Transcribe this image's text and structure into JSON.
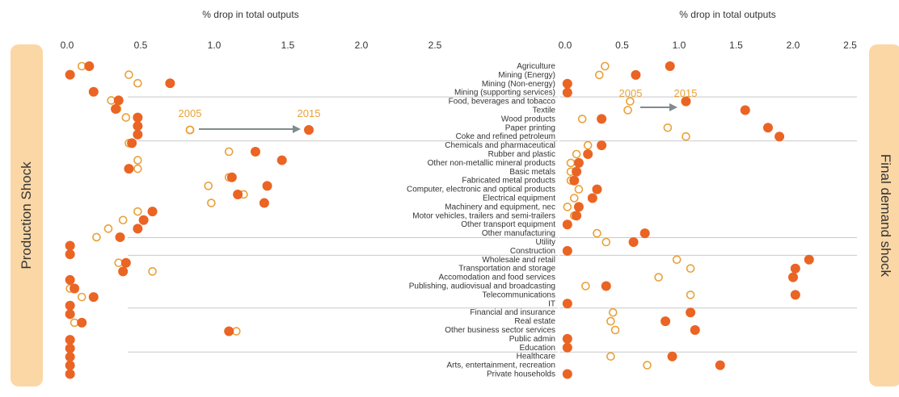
{
  "colors": {
    "dot_2015": "#ea6424",
    "dot_2005": "#e9a13a",
    "arrow": "#7f8c8d",
    "axis_text": "#333333",
    "grid": "#c9c9c9",
    "side_box": "#fbd7a6"
  },
  "side_labels": {
    "left": "Production Shock",
    "right": "Final demand shock"
  },
  "legend": {
    "year_2005": "2005",
    "year_2015": "2015"
  },
  "chart_data": [
    {
      "type": "scatter",
      "title": "% drop in  total outputs",
      "xlim": [
        0,
        2.5
      ],
      "xticks": [
        "0.0",
        "0.5",
        "1.0",
        "1.5",
        "2.0",
        "2.5"
      ],
      "grid": false,
      "series": [
        {
          "name": "2005",
          "values": [
            0.1,
            0.42,
            0.48,
            0.18,
            0.3,
            0.34,
            0.4,
            0.48,
            0.48,
            0.42,
            1.1,
            0.48,
            0.48,
            1.1,
            0.96,
            1.2,
            0.98,
            0.48,
            0.38,
            0.28,
            0.2,
            0.02,
            0.02,
            0.35,
            0.58,
            0.02,
            0.02,
            0.1,
            0.02,
            0.02,
            0.05,
            1.15,
            0.02,
            0.02,
            0.02,
            0.02,
            0.02
          ]
        },
        {
          "name": "2015",
          "values": [
            0.15,
            0.02,
            0.7,
            0.18,
            0.35,
            0.33,
            0.48,
            0.48,
            0.48,
            0.44,
            1.28,
            1.46,
            0.42,
            1.12,
            1.36,
            1.16,
            1.34,
            0.58,
            0.52,
            0.48,
            0.36,
            0.02,
            0.02,
            0.4,
            0.38,
            0.02,
            0.05,
            0.18,
            0.02,
            0.02,
            0.1,
            1.1,
            0.02,
            0.02,
            0.02,
            0.02,
            0.02
          ]
        }
      ]
    },
    {
      "type": "scatter",
      "title": "% drop in  total outputs",
      "xlim": [
        0,
        2.5
      ],
      "xticks": [
        "0.0",
        "0.5",
        "1.0",
        "1.5",
        "2.0",
        "2.5"
      ],
      "grid": false,
      "categories": [
        "Agriculture",
        "Mining (Energy)",
        "Mining (Non-energy)",
        "Mining (supporting services)",
        "Food, beverages and tobacco",
        "Textile",
        "Wood products",
        "Paper printing",
        "Coke and refined petroleum",
        "Chemicals and pharmaceutical",
        "Rubber and plastic",
        "Other non-metallic mineral products",
        "Basic metals",
        "Fabricated metal products",
        "Computer, electronic and optical products",
        "Electrical equipment",
        "Machinery and equipment, nec",
        "Motor vehicles, trailers and semi-trailers",
        "Other transport equipment",
        "Other manufacturing",
        "Utility",
        "Construction",
        "Wholesale and retail",
        "Transportation and storage",
        "Accomodation and food services",
        "Publishing, audiovisual and broadcasting",
        "Telecommunications",
        "IT",
        "Financial and insurance",
        "Real estate",
        "Other business sector services",
        "Public admin",
        "Education",
        "Healthcare",
        "Arts, entertainment, recreation",
        "Private households"
      ],
      "series": [
        {
          "name": "2005",
          "values": [
            0.35,
            0.3,
            0.02,
            0.02,
            0.57,
            0.55,
            0.15,
            0.9,
            1.06,
            0.2,
            0.1,
            0.05,
            0.05,
            0.05,
            0.12,
            0.08,
            0.02,
            0.08,
            0.02,
            0.28,
            0.36,
            0.02,
            0.98,
            1.1,
            0.82,
            0.18,
            1.1,
            0.02,
            0.42,
            0.4,
            0.44,
            0.02,
            0.02,
            0.4,
            0.72,
            0.02
          ]
        },
        {
          "name": "2015",
          "values": [
            0.92,
            0.62,
            0.02,
            0.02,
            1.06,
            1.58,
            0.32,
            1.78,
            1.88,
            0.32,
            0.2,
            0.12,
            0.1,
            0.08,
            0.28,
            0.24,
            0.12,
            0.1,
            0.02,
            0.7,
            0.6,
            0.02,
            2.14,
            2.02,
            2.0,
            0.36,
            2.02,
            0.02,
            1.1,
            0.88,
            1.14,
            0.02,
            0.02,
            0.94,
            1.36,
            0.02
          ]
        }
      ]
    }
  ]
}
